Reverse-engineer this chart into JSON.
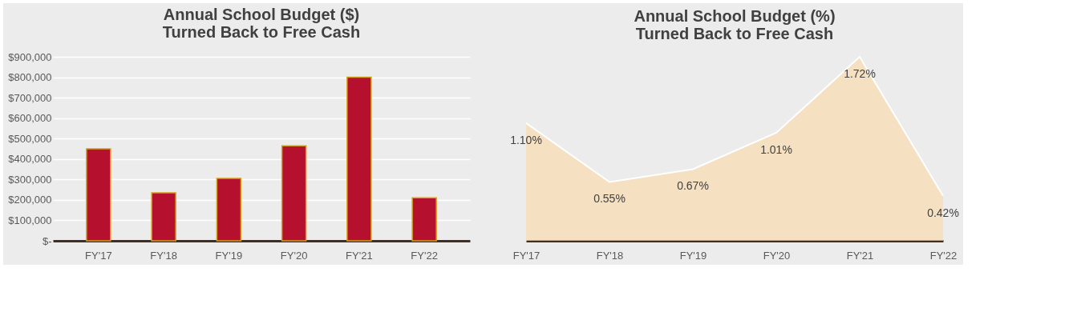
{
  "chart_data": [
    {
      "type": "bar",
      "title": "Annual School Budget ($) Turned Back to Free Cash",
      "categories": [
        "FY'17",
        "FY'18",
        "FY'19",
        "FY'20",
        "FY'21",
        "FY'22"
      ],
      "values": [
        450000,
        235000,
        305000,
        465000,
        800000,
        210000
      ],
      "color": "#b5102e",
      "ylim": [
        0,
        900000
      ],
      "yticks": [
        {
          "value": 0,
          "label": "$-"
        },
        {
          "value": 100000,
          "label": "$100,000"
        },
        {
          "value": 200000,
          "label": "$200,000"
        },
        {
          "value": 300000,
          "label": "$300,000"
        },
        {
          "value": 400000,
          "label": "$400,000"
        },
        {
          "value": 500000,
          "label": "$500,000"
        },
        {
          "value": 600000,
          "label": "$600,000"
        },
        {
          "value": 700000,
          "label": "$700,000"
        },
        {
          "value": 800000,
          "label": "$800,000"
        },
        {
          "value": 900000,
          "label": "$900,000"
        }
      ],
      "grid": "y"
    },
    {
      "type": "area",
      "title": "Annual School Budget (%) Turned Back to Free Cash",
      "categories": [
        "FY'17",
        "FY'18",
        "FY'19",
        "FY'20",
        "FY'21",
        "FY'22"
      ],
      "values": [
        1.1,
        0.55,
        0.67,
        1.01,
        1.72,
        0.42
      ],
      "color": "#f9dcb0",
      "value_labels": [
        "1.10%",
        "0.55%",
        "0.67%",
        "1.01%",
        "1.72%",
        "0.42%"
      ],
      "tick_labels": "x"
    }
  ]
}
